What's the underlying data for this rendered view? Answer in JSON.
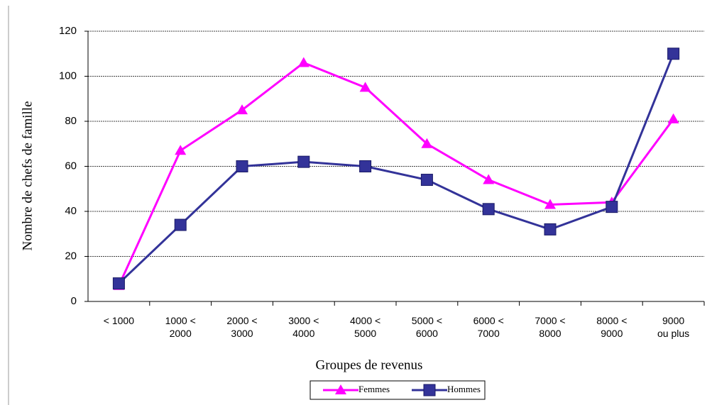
{
  "chart_data": {
    "type": "line",
    "x_label": "Groupes de revenus",
    "y_label": "Nombre de chefs de famille",
    "categories": [
      "< 1000",
      "1000 <\n2000",
      "2000 <\n3000",
      "3000 <\n4000",
      "4000 <\n5000",
      "5000 <\n6000",
      "6000 <\n7000",
      "7000 <\n8000",
      "8000 <\n9000",
      "9000\nou plus"
    ],
    "series": [
      {
        "name": "Femmes",
        "color": "#ff00ff",
        "marker": "triangle",
        "values": [
          7,
          67,
          85,
          106,
          95,
          70,
          54,
          43,
          44,
          81
        ]
      },
      {
        "name": "Hommes",
        "color": "#333399",
        "marker": "square",
        "values": [
          8,
          34,
          60,
          62,
          60,
          54,
          41,
          32,
          42,
          110
        ]
      }
    ],
    "ylim": [
      0,
      120
    ],
    "yticks": [
      0,
      20,
      40,
      60,
      80,
      100,
      120
    ],
    "grid": true,
    "legend": "bottom"
  }
}
